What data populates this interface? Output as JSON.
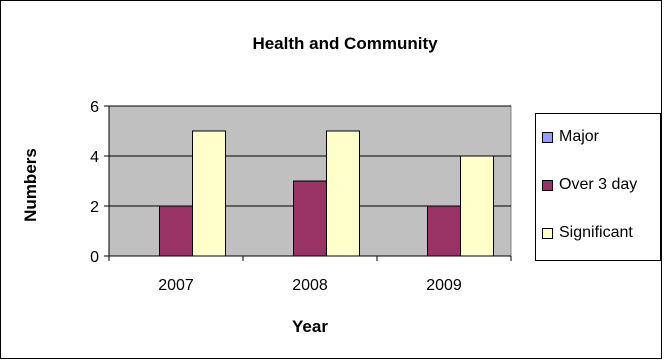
{
  "chart_data": {
    "type": "bar",
    "title": "Health and Community",
    "xlabel": "Year",
    "ylabel": "Numbers",
    "categories": [
      "2007",
      "2008",
      "2009"
    ],
    "series": [
      {
        "name": "Major",
        "values": [
          0,
          0,
          0
        ],
        "color": "#9999ff"
      },
      {
        "name": "Over 3 day",
        "values": [
          2,
          3,
          2
        ],
        "color": "#993366"
      },
      {
        "name": "Significant",
        "values": [
          5,
          5,
          4
        ],
        "color": "#ffffcc"
      }
    ],
    "ylim": [
      0,
      6
    ],
    "yticks": [
      "0",
      "2",
      "4",
      "6"
    ],
    "grid": true,
    "plot_background": "#c0c0c0",
    "legend": "right"
  }
}
